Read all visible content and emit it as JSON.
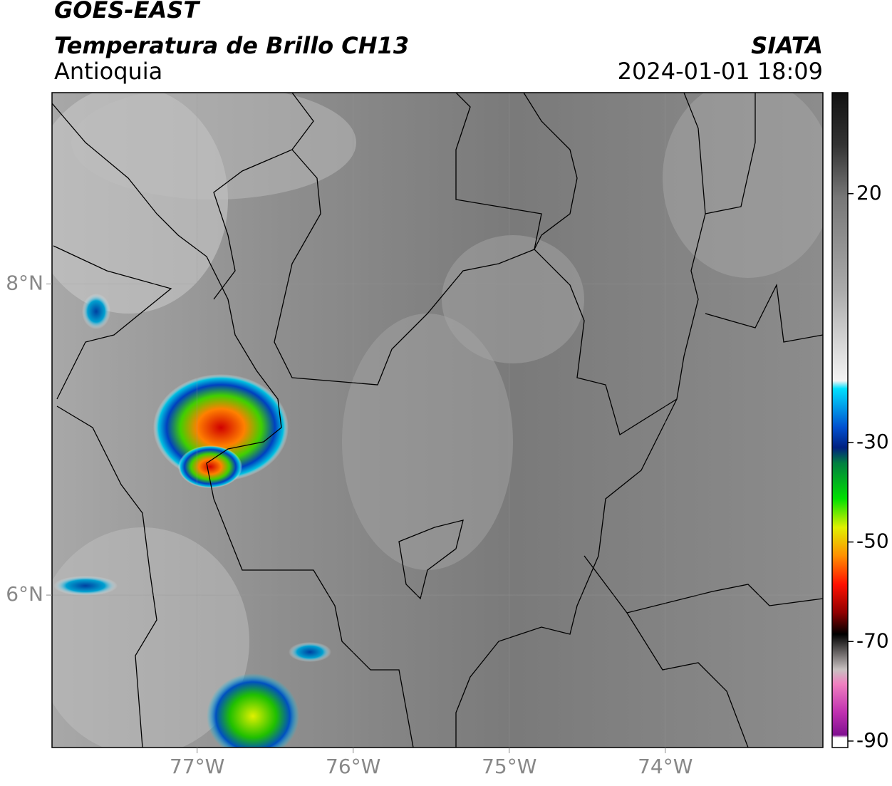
{
  "header": {
    "title": "GOES-EAST",
    "subtitle": "Temperatura de Brillo CH13",
    "region": "Antioquia",
    "source": "SIATA",
    "datetime": "2024-01-01 18:09"
  },
  "map": {
    "xlim": [
      -77.93,
      -72.99
    ],
    "ylim": [
      5.02,
      9.23
    ],
    "xticks": [
      {
        "value": -77,
        "label": "77°W"
      },
      {
        "value": -76,
        "label": "76°W"
      },
      {
        "value": -75,
        "label": "75°W"
      },
      {
        "value": -74,
        "label": "74°W"
      }
    ],
    "yticks": [
      {
        "value": 8,
        "label": "8°N"
      },
      {
        "value": 6,
        "label": "6°N"
      }
    ]
  },
  "colorbar": {
    "ylim": [
      -91.3,
      40.3
    ],
    "yticks": [
      20,
      -30,
      -50,
      -70,
      -90
    ]
  }
}
